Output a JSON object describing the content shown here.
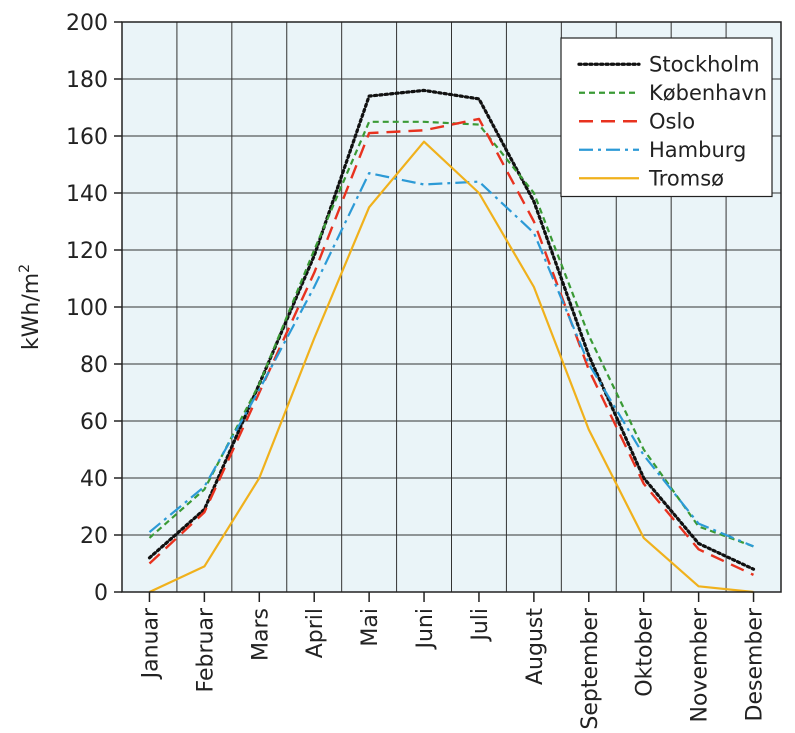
{
  "chart_data": {
    "type": "line",
    "title": "",
    "xlabel": "",
    "ylabel": "kWh/m",
    "ylabel_superscript": "2",
    "ylim": [
      0,
      200
    ],
    "yticks": [
      0,
      20,
      40,
      60,
      80,
      100,
      120,
      140,
      160,
      180,
      200
    ],
    "grid": true,
    "legend_position": "top-right",
    "background_color": "#eaf4f8",
    "categories": [
      "Januar",
      "Februar",
      "Mars",
      "April",
      "Mai",
      "Juni",
      "Juli",
      "August",
      "September",
      "Oktober",
      "November",
      "Desember"
    ],
    "series": [
      {
        "name": "Stockholm",
        "color": "#111111",
        "dash": "dotted",
        "values": [
          12,
          29,
          73,
          118,
          174,
          176,
          173,
          137,
          83,
          40,
          17,
          8
        ]
      },
      {
        "name": "København",
        "color": "#3a9a35",
        "dash": "dashed",
        "values": [
          19,
          36,
          73,
          120,
          165,
          165,
          164,
          140,
          90,
          50,
          23,
          16
        ]
      },
      {
        "name": "Oslo",
        "color": "#e8321f",
        "dash": "longdash",
        "values": [
          10,
          28,
          70,
          112,
          161,
          162,
          166,
          130,
          78,
          38,
          15,
          6
        ]
      },
      {
        "name": "Hamburg",
        "color": "#2c9ad6",
        "dash": "dashdot",
        "values": [
          21,
          37,
          71,
          107,
          147,
          143,
          144,
          126,
          80,
          48,
          24,
          16
        ]
      },
      {
        "name": "Tromsø",
        "color": "#f0b11c",
        "dash": "solid",
        "values": [
          0,
          9,
          40,
          89,
          135,
          158,
          140,
          107,
          57,
          19,
          2,
          0
        ]
      }
    ]
  }
}
